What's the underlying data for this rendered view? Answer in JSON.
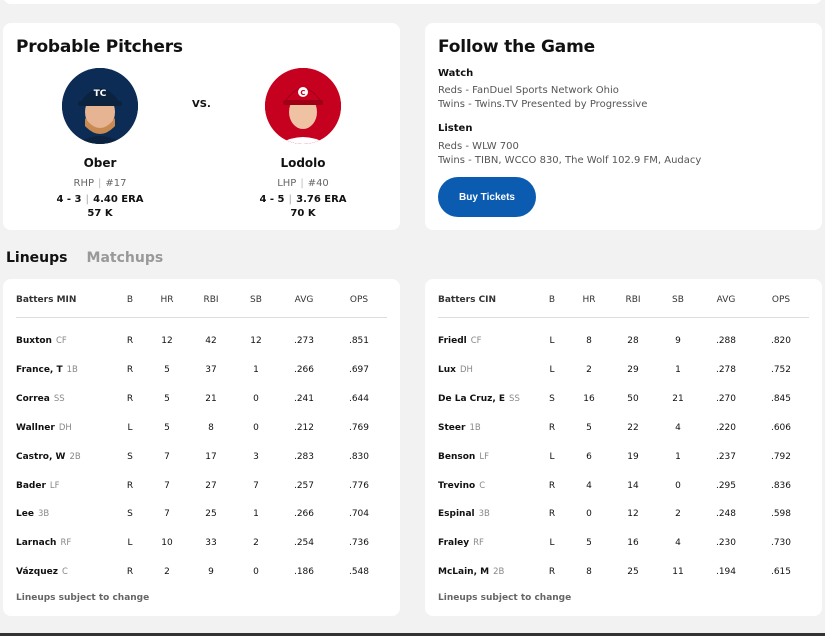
{
  "probable_pitchers": {
    "title": "Probable Pitchers",
    "vs_label": "VS.",
    "away": {
      "name": "Ober",
      "throws": "RHP",
      "number": "#17",
      "record": "4 - 3",
      "era": "4.40 ERA",
      "strikeouts": "57 K",
      "team_color": "#0c2c56",
      "cap_color": "#0c2340"
    },
    "home": {
      "name": "Lodolo",
      "throws": "LHP",
      "number": "#40",
      "record": "4 - 5",
      "era": "3.76 ERA",
      "strikeouts": "70 K",
      "team_color": "#c6011f",
      "cap_color": "#c6011f"
    }
  },
  "follow": {
    "title": "Follow the Game",
    "watch_label": "Watch",
    "watch": [
      "Reds - FanDuel Sports Network Ohio",
      "Twins - Twins.TV Presented by Progressive"
    ],
    "listen_label": "Listen",
    "listen": [
      "Reds - WLW 700",
      "Twins - TIBN, WCCO 830, The Wolf 102.9 FM, Audacy"
    ],
    "buy_label": "Buy Tickets",
    "accent": "#0b5bb0"
  },
  "tabs": [
    {
      "label": "Lineups",
      "active": true
    },
    {
      "label": "Matchups",
      "active": false
    }
  ],
  "columns": [
    "B",
    "HR",
    "RBI",
    "SB",
    "AVG",
    "OPS"
  ],
  "lineups": [
    {
      "header": "Batters MIN",
      "note": "Lineups subject to change",
      "rows": [
        {
          "name": "Buxton",
          "pos": "CF",
          "b": "R",
          "hr": "12",
          "rbi": "42",
          "sb": "12",
          "avg": ".273",
          "ops": ".851"
        },
        {
          "name": "France, T",
          "pos": "1B",
          "b": "R",
          "hr": "5",
          "rbi": "37",
          "sb": "1",
          "avg": ".266",
          "ops": ".697"
        },
        {
          "name": "Correa",
          "pos": "SS",
          "b": "R",
          "hr": "5",
          "rbi": "21",
          "sb": "0",
          "avg": ".241",
          "ops": ".644"
        },
        {
          "name": "Wallner",
          "pos": "DH",
          "b": "L",
          "hr": "5",
          "rbi": "8",
          "sb": "0",
          "avg": ".212",
          "ops": ".769"
        },
        {
          "name": "Castro, W",
          "pos": "2B",
          "b": "S",
          "hr": "7",
          "rbi": "17",
          "sb": "3",
          "avg": ".283",
          "ops": ".830"
        },
        {
          "name": "Bader",
          "pos": "LF",
          "b": "R",
          "hr": "7",
          "rbi": "27",
          "sb": "7",
          "avg": ".257",
          "ops": ".776"
        },
        {
          "name": "Lee",
          "pos": "3B",
          "b": "S",
          "hr": "7",
          "rbi": "25",
          "sb": "1",
          "avg": ".266",
          "ops": ".704"
        },
        {
          "name": "Larnach",
          "pos": "RF",
          "b": "L",
          "hr": "10",
          "rbi": "33",
          "sb": "2",
          "avg": ".254",
          "ops": ".736"
        },
        {
          "name": "Vázquez",
          "pos": "C",
          "b": "R",
          "hr": "2",
          "rbi": "9",
          "sb": "0",
          "avg": ".186",
          "ops": ".548"
        }
      ]
    },
    {
      "header": "Batters CIN",
      "note": "Lineups subject to change",
      "rows": [
        {
          "name": "Friedl",
          "pos": "CF",
          "b": "L",
          "hr": "8",
          "rbi": "28",
          "sb": "9",
          "avg": ".288",
          "ops": ".820"
        },
        {
          "name": "Lux",
          "pos": "DH",
          "b": "L",
          "hr": "2",
          "rbi": "29",
          "sb": "1",
          "avg": ".278",
          "ops": ".752"
        },
        {
          "name": "De La Cruz, E",
          "pos": "SS",
          "b": "S",
          "hr": "16",
          "rbi": "50",
          "sb": "21",
          "avg": ".270",
          "ops": ".845"
        },
        {
          "name": "Steer",
          "pos": "1B",
          "b": "R",
          "hr": "5",
          "rbi": "22",
          "sb": "4",
          "avg": ".220",
          "ops": ".606"
        },
        {
          "name": "Benson",
          "pos": "LF",
          "b": "L",
          "hr": "6",
          "rbi": "19",
          "sb": "1",
          "avg": ".237",
          "ops": ".792"
        },
        {
          "name": "Trevino",
          "pos": "C",
          "b": "R",
          "hr": "4",
          "rbi": "14",
          "sb": "0",
          "avg": ".295",
          "ops": ".836"
        },
        {
          "name": "Espinal",
          "pos": "3B",
          "b": "R",
          "hr": "0",
          "rbi": "12",
          "sb": "2",
          "avg": ".248",
          "ops": ".598"
        },
        {
          "name": "Fraley",
          "pos": "RF",
          "b": "L",
          "hr": "5",
          "rbi": "16",
          "sb": "4",
          "avg": ".230",
          "ops": ".730"
        },
        {
          "name": "McLain, M",
          "pos": "2B",
          "b": "R",
          "hr": "8",
          "rbi": "25",
          "sb": "11",
          "avg": ".194",
          "ops": ".615"
        }
      ]
    }
  ]
}
